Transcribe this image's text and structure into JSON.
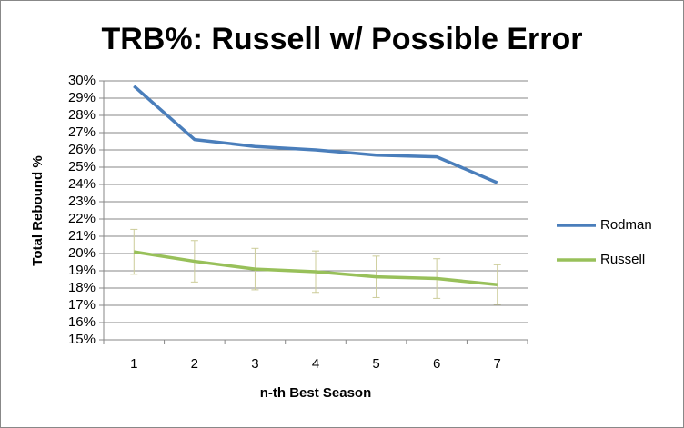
{
  "chart_data": {
    "type": "line",
    "title": "TRB%: Russell w/ Possible Error",
    "x_label": "n-th Best Season",
    "y_label": "Total Rebound %",
    "categories": [
      "1",
      "2",
      "3",
      "4",
      "5",
      "6",
      "7"
    ],
    "series": [
      {
        "name": "Rodman",
        "color": "#4a7ebb",
        "values": [
          29.7,
          26.6,
          26.2,
          26.0,
          25.7,
          25.6,
          24.1
        ]
      },
      {
        "name": "Russell",
        "color": "#98c05a",
        "values": [
          20.1,
          19.55,
          19.1,
          18.95,
          18.65,
          18.55,
          18.2
        ],
        "errors": [
          1.3,
          1.2,
          1.2,
          1.2,
          1.2,
          1.15,
          1.15
        ],
        "error_color": "#cccc99"
      }
    ],
    "ylim": [
      15,
      30
    ],
    "yticks": [
      {
        "value": 15,
        "label": "15%"
      },
      {
        "value": 16,
        "label": "16%"
      },
      {
        "value": 17,
        "label": "17%"
      },
      {
        "value": 18,
        "label": "18%"
      },
      {
        "value": 19,
        "label": "19%"
      },
      {
        "value": 20,
        "label": "20%"
      },
      {
        "value": 21,
        "label": "21%"
      },
      {
        "value": 22,
        "label": "22%"
      },
      {
        "value": 23,
        "label": "23%"
      },
      {
        "value": 24,
        "label": "24%"
      },
      {
        "value": 25,
        "label": "25%"
      },
      {
        "value": 26,
        "label": "26%"
      },
      {
        "value": 27,
        "label": "27%"
      },
      {
        "value": 28,
        "label": "28%"
      },
      {
        "value": 29,
        "label": "29%"
      },
      {
        "value": 30,
        "label": "30%"
      }
    ],
    "grid": true,
    "legend": "right"
  }
}
